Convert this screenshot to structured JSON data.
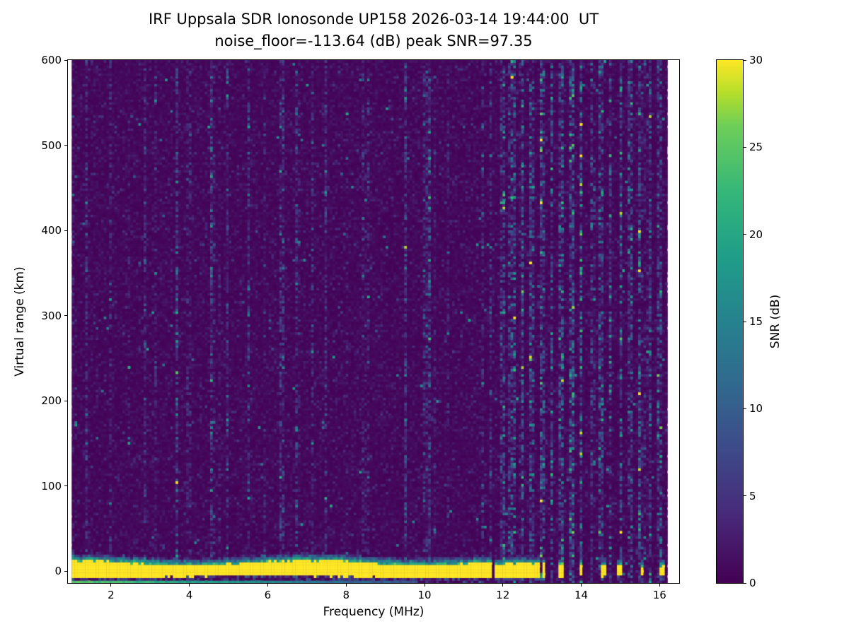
{
  "chart_data": {
    "type": "heatmap",
    "title": "IRF Uppsala SDR Ionosonde UP158 2026-03-14 19:44:00  UT",
    "subtitle": "noise_floor=-113.64 (dB) peak SNR=97.35",
    "xlabel": "Frequency (MHz)",
    "ylabel": "Virtual range (km)",
    "colorbar_label": "SNR (dB)",
    "xlim": [
      0.9,
      16.5
    ],
    "ylim": [
      -14,
      600
    ],
    "clim": [
      0,
      30
    ],
    "xticks": [
      2,
      4,
      6,
      8,
      10,
      12,
      14,
      16
    ],
    "yticks": [
      0,
      100,
      200,
      300,
      400,
      500,
      600
    ],
    "cticks": [
      0,
      5,
      10,
      15,
      20,
      25,
      30
    ],
    "grid": false,
    "legend": "colorbar-right",
    "colormap": "viridis",
    "colormap_stops": [
      [
        0.0,
        "#440154"
      ],
      [
        0.125,
        "#482878"
      ],
      [
        0.25,
        "#3e4989"
      ],
      [
        0.375,
        "#31688e"
      ],
      [
        0.5,
        "#26828e"
      ],
      [
        0.625,
        "#1f9e89"
      ],
      [
        0.75,
        "#35b779"
      ],
      [
        0.875,
        "#6ece58"
      ],
      [
        0.9375,
        "#b5de2b"
      ],
      [
        1.0,
        "#fde725"
      ]
    ],
    "data_freq_range": [
      1.0,
      16.2
    ],
    "features": {
      "noise_floor_db": -113.64,
      "peak_snr_db": 97.35,
      "background_noise_db_mean": 0.9,
      "speckle_db_range": [
        8,
        20
      ],
      "ground_pulse": {
        "range_km": [
          -6,
          9
        ],
        "freq_range": [
          1.0,
          11.72
        ],
        "snr_db": 30,
        "fringe_top_km": 18
      },
      "bottom_echo": {
        "range_km": [
          -14,
          -12
        ],
        "freq_range": [
          1.0,
          9.8
        ],
        "snr_db": 25
      },
      "rfi_blobs_mhz": [
        11.85,
        11.95,
        12.08,
        12.2,
        12.33,
        12.46,
        12.6,
        12.75,
        12.9,
        13.05,
        13.5,
        14.0,
        14.55,
        15.0,
        15.55,
        16.05
      ],
      "rfi_columns_mhz": [
        12.0,
        12.25,
        12.5,
        12.75,
        13.0,
        13.25,
        13.5,
        13.75,
        14.0,
        14.25,
        14.5,
        14.75,
        15.0,
        15.25,
        15.5,
        15.75,
        16.0
      ],
      "seed": 158
    }
  }
}
